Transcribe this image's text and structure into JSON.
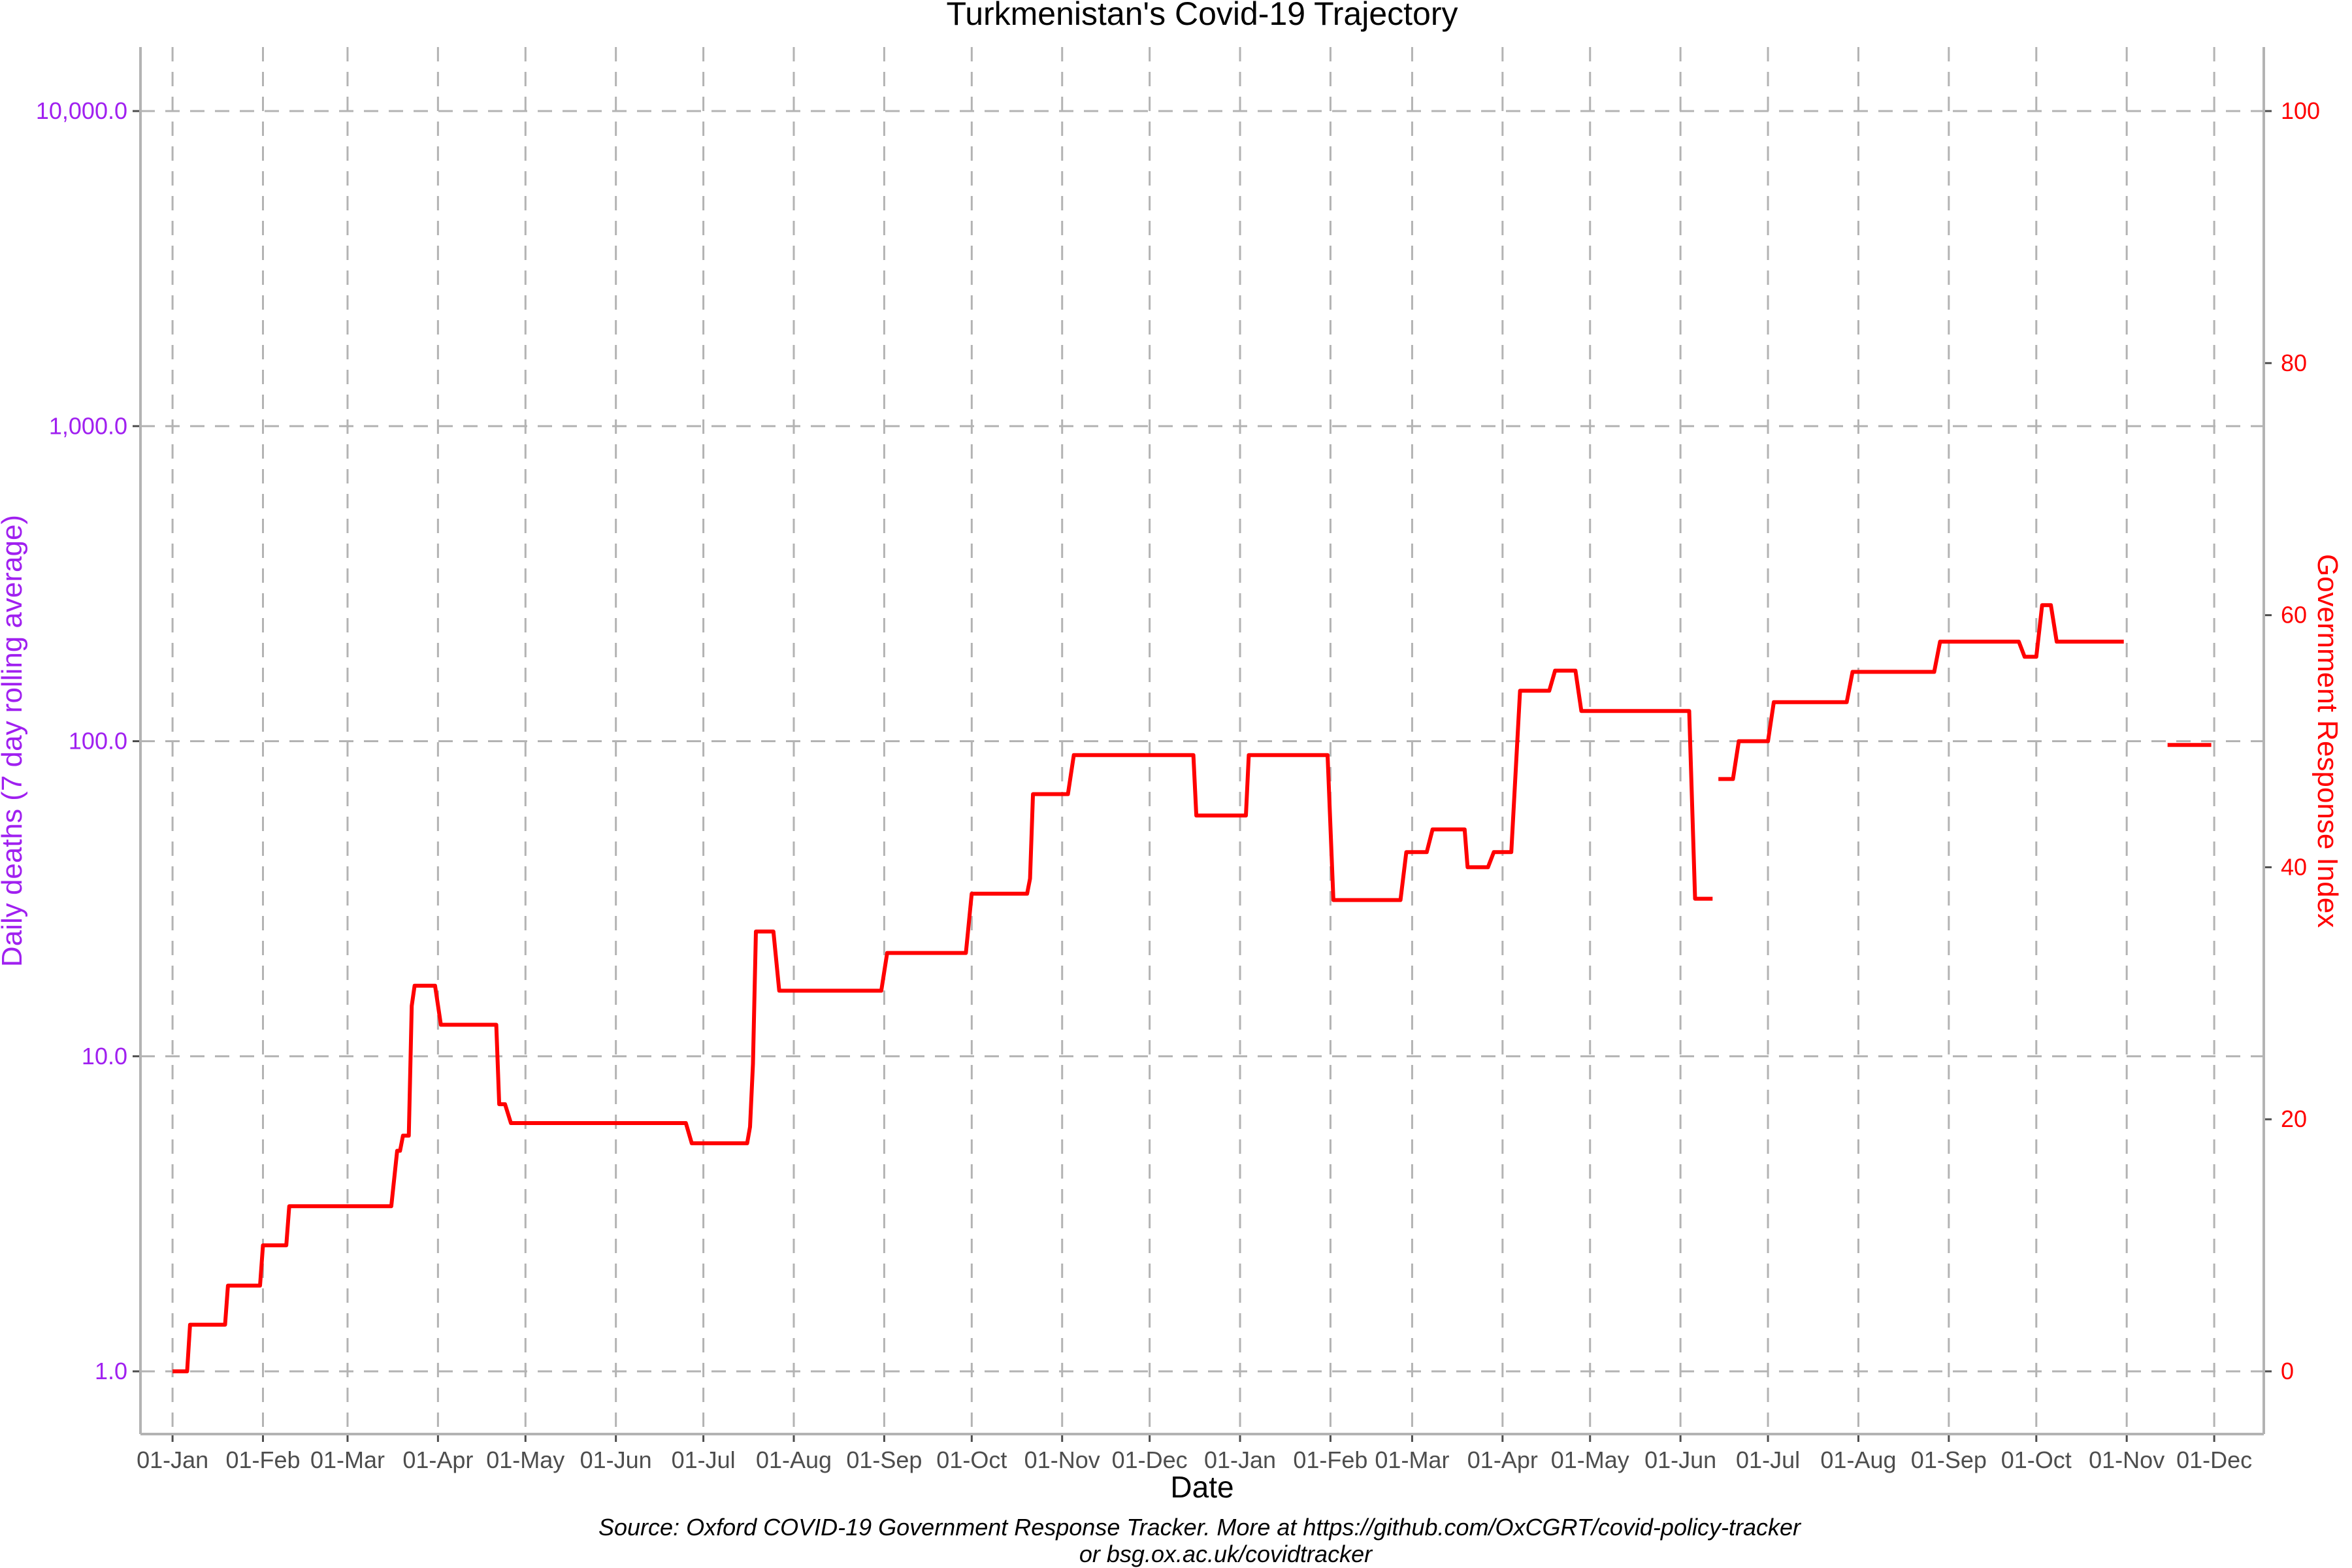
{
  "chart_data": {
    "type": "line",
    "title": "Turkmenistan's Covid-19 Trajectory",
    "xlabel": "Date",
    "ylabel_left": "Daily deaths (7 day rolling average)",
    "ylabel_right": "Government Response Index",
    "caption_line1": "Source: Oxford COVID-19 Government Response Tracker. More at https://github.com/OxCGRT/covid-policy-tracker",
    "caption_line2": "or bsg.ox.ac.uk/covidtracker",
    "y_left": {
      "scale": "log10",
      "ticks": [
        1,
        10,
        100,
        1000,
        10000
      ],
      "tick_labels": [
        "1.0",
        "10.0",
        "100.0",
        "1,000.0",
        "10,000.0"
      ],
      "color": "#a020f0"
    },
    "y_right": {
      "ylim": [
        0,
        100
      ],
      "ticks": [
        0,
        20,
        40,
        60,
        80,
        100
      ],
      "tick_labels": [
        "0",
        "20",
        "40",
        "60",
        "80",
        "100"
      ],
      "color": "#ff0000"
    },
    "x_axis": {
      "range": [
        "2019-12-21",
        "2021-12-18"
      ],
      "ticks": [
        "2020-01-01",
        "2020-02-01",
        "2020-03-01",
        "2020-04-01",
        "2020-05-01",
        "2020-06-01",
        "2020-07-01",
        "2020-08-01",
        "2020-09-01",
        "2020-10-01",
        "2020-11-01",
        "2020-12-01",
        "2021-01-01",
        "2021-02-01",
        "2021-03-01",
        "2021-04-01",
        "2021-05-01",
        "2021-06-01",
        "2021-07-01",
        "2021-08-01",
        "2021-09-01",
        "2021-10-01",
        "2021-11-01",
        "2021-12-01"
      ],
      "tick_labels": [
        "01-Jan",
        "01-Feb",
        "01-Mar",
        "01-Apr",
        "01-May",
        "01-Jun",
        "01-Jul",
        "01-Aug",
        "01-Sep",
        "01-Oct",
        "01-Nov",
        "01-Dec",
        "01-Jan",
        "01-Feb",
        "01-Mar",
        "01-Apr",
        "01-May",
        "01-Jun",
        "01-Jul",
        "01-Aug",
        "01-Sep",
        "01-Oct",
        "01-Nov",
        "01-Dec"
      ]
    },
    "grid": true,
    "series": [
      {
        "color": "#ff0000",
        "axis": "right",
        "segments": [
          [
            [
              "2020-01-01",
              0
            ],
            [
              "2020-01-06",
              0
            ],
            [
              "2020-01-07",
              3.7
            ],
            [
              "2020-01-19",
              3.7
            ],
            [
              "2020-01-20",
              6.8
            ],
            [
              "2020-01-31",
              6.8
            ],
            [
              "2020-02-01",
              10.0
            ],
            [
              "2020-02-09",
              10.0
            ],
            [
              "2020-02-10",
              13.1
            ],
            [
              "2020-03-16",
              13.1
            ],
            [
              "2020-03-18",
              17.5
            ],
            [
              "2020-03-19",
              17.5
            ],
            [
              "2020-03-20",
              18.7
            ],
            [
              "2020-03-22",
              18.7
            ],
            [
              "2020-03-23",
              29.0
            ],
            [
              "2020-03-24",
              30.6
            ],
            [
              "2020-03-31",
              30.6
            ],
            [
              "2020-04-02",
              27.5
            ],
            [
              "2020-04-21",
              27.5
            ],
            [
              "2020-04-22",
              21.2
            ],
            [
              "2020-04-24",
              21.2
            ],
            [
              "2020-04-26",
              19.7
            ],
            [
              "2020-06-25",
              19.7
            ],
            [
              "2020-06-27",
              18.1
            ],
            [
              "2020-07-16",
              18.1
            ],
            [
              "2020-07-17",
              19.4
            ],
            [
              "2020-07-18",
              24.4
            ],
            [
              "2020-07-19",
              34.9
            ],
            [
              "2020-07-25",
              34.9
            ],
            [
              "2020-07-27",
              30.2
            ],
            [
              "2020-08-31",
              30.2
            ],
            [
              "2020-09-02",
              33.2
            ],
            [
              "2020-09-29",
              33.2
            ],
            [
              "2020-10-01",
              37.9
            ],
            [
              "2020-10-20",
              37.9
            ],
            [
              "2020-10-21",
              39.1
            ],
            [
              "2020-10-22",
              45.8
            ],
            [
              "2020-11-03",
              45.8
            ],
            [
              "2020-11-05",
              48.9
            ],
            [
              "2020-12-16",
              48.9
            ],
            [
              "2020-12-17",
              44.1
            ],
            [
              "2021-01-03",
              44.1
            ],
            [
              "2021-01-04",
              48.9
            ],
            [
              "2021-01-31",
              48.9
            ],
            [
              "2021-02-02",
              37.4
            ],
            [
              "2021-02-25",
              37.4
            ],
            [
              "2021-02-27",
              41.2
            ],
            [
              "2021-03-06",
              41.2
            ],
            [
              "2021-03-08",
              43.0
            ],
            [
              "2021-03-19",
              43.0
            ],
            [
              "2021-03-20",
              40.0
            ],
            [
              "2021-03-27",
              40.0
            ],
            [
              "2021-03-29",
              41.2
            ],
            [
              "2021-04-04",
              41.2
            ],
            [
              "2021-04-07",
              54.0
            ],
            [
              "2021-04-17",
              54.0
            ],
            [
              "2021-04-19",
              55.6
            ],
            [
              "2021-04-26",
              55.6
            ],
            [
              "2021-04-28",
              52.4
            ],
            [
              "2021-06-04",
              52.4
            ],
            [
              "2021-06-06",
              37.5
            ],
            [
              "2021-06-12",
              37.5
            ]
          ],
          [
            [
              "2021-06-14",
              47.0
            ],
            [
              "2021-06-19",
              47.0
            ],
            [
              "2021-06-21",
              50.0
            ],
            [
              "2021-07-01",
              50.0
            ],
            [
              "2021-07-03",
              53.1
            ],
            [
              "2021-07-28",
              53.1
            ],
            [
              "2021-07-30",
              55.5
            ],
            [
              "2021-08-27",
              55.5
            ],
            [
              "2021-08-29",
              57.9
            ],
            [
              "2021-09-25",
              57.9
            ],
            [
              "2021-09-27",
              56.7
            ],
            [
              "2021-10-01",
              56.7
            ],
            [
              "2021-10-03",
              60.8
            ],
            [
              "2021-10-06",
              60.8
            ],
            [
              "2021-10-08",
              57.9
            ],
            [
              "2021-10-31",
              57.9
            ]
          ],
          [
            [
              "2021-11-15",
              49.7
            ],
            [
              "2021-11-30",
              49.7
            ]
          ]
        ]
      }
    ]
  }
}
